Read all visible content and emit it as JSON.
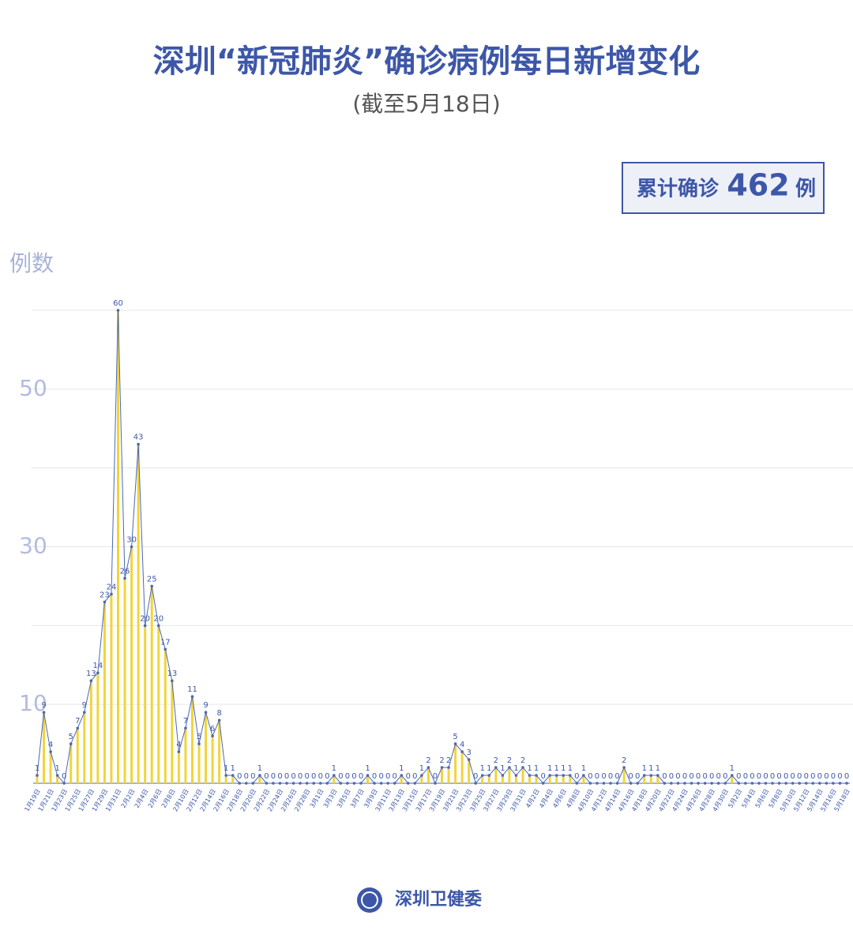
{
  "chart_data": {
    "type": "line_bar",
    "title": "深圳“新冠肺炎”确诊病例每日新增变化",
    "subtitle": "(截至5月18日)",
    "summary": {
      "prefix": "累计确诊",
      "value": 462,
      "suffix": "例"
    },
    "y_label": "例数",
    "source": "深圳卫健委",
    "bar_color": "#f2d43a",
    "line_color": "#4a68b5",
    "ylim": [
      0,
      60
    ],
    "yticks": [
      10,
      30,
      50
    ],
    "grid_lines": [
      10,
      20,
      30,
      40,
      50,
      60
    ],
    "categories": [
      "1月19日",
      null,
      "1月21日",
      null,
      "1月23日",
      null,
      "1月25日",
      null,
      "1月27日",
      null,
      "1月29日",
      null,
      "1月31日",
      null,
      "2月2日",
      null,
      "2月4日",
      null,
      "2月6日",
      null,
      "2月8日",
      null,
      "2月10日",
      null,
      "2月12日",
      null,
      "2月14日",
      null,
      "2月16日",
      null,
      "2月18日",
      null,
      "2月20日",
      null,
      "2月22日",
      null,
      "2月24日",
      null,
      "2月26日",
      null,
      "2月28日",
      null,
      "3月1日",
      null,
      "3月3日",
      null,
      "3月5日",
      null,
      "3月7日",
      null,
      "3月9日",
      null,
      "3月11日",
      null,
      "3月13日",
      null,
      "3月15日",
      null,
      "3月17日",
      null,
      "3月19日",
      null,
      "3月21日",
      null,
      "3月23日",
      null,
      "3月25日",
      null,
      "3月27日",
      null,
      "3月29日",
      null,
      "3月31日",
      null,
      "4月2日",
      null,
      "4月4日",
      null,
      "4月6日",
      null,
      "4月8日",
      null,
      "4月10日",
      null,
      "4月12日",
      null,
      "4月14日",
      null,
      "4月16日",
      null,
      "4月18日",
      null,
      "4月20日",
      null,
      "4月22日",
      null,
      "4月24日",
      null,
      "4月26日",
      null,
      "4月28日",
      null,
      "4月30日",
      null,
      "5月2日",
      null,
      "5月4日",
      null,
      "5月6日",
      null,
      "5月8日",
      null,
      "5月10日",
      null,
      "5月12日",
      null,
      "5月14日",
      null,
      "5月16日",
      null,
      "5月18日"
    ],
    "values": [
      1,
      9,
      4,
      1,
      0,
      5,
      7,
      9,
      13,
      14,
      23,
      24,
      60,
      26,
      30,
      43,
      20,
      25,
      20,
      17,
      13,
      4,
      7,
      11,
      5,
      9,
      6,
      8,
      1,
      1,
      0,
      0,
      0,
      1,
      0,
      0,
      0,
      0,
      0,
      0,
      0,
      0,
      0,
      0,
      1,
      0,
      0,
      0,
      0,
      1,
      0,
      0,
      0,
      0,
      1,
      0,
      0,
      1,
      2,
      0,
      2,
      2,
      5,
      4,
      3,
      0,
      1,
      1,
      2,
      1,
      2,
      1,
      2,
      1,
      1,
      0,
      1,
      1,
      1,
      1,
      0,
      1,
      0,
      0,
      0,
      0,
      0,
      2,
      0,
      0,
      1,
      1,
      1,
      0,
      0,
      0,
      0,
      0,
      0,
      0,
      0,
      0,
      0,
      1,
      0,
      0,
      0,
      0,
      0,
      0,
      0,
      0,
      0,
      0,
      0,
      0,
      0,
      0,
      0,
      0,
      0
    ]
  }
}
